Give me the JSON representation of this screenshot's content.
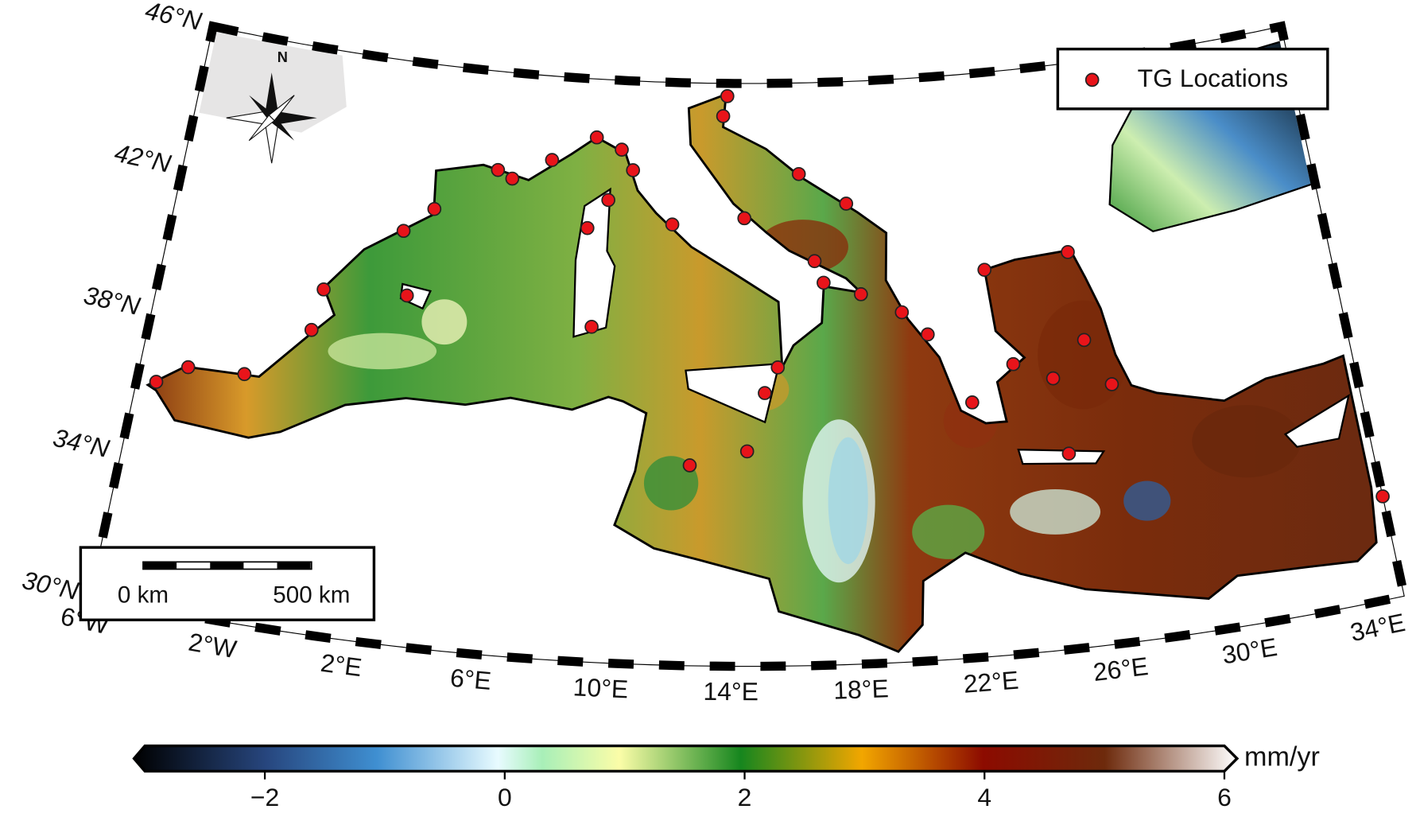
{
  "map": {
    "xlim": [
      -6,
      35
    ],
    "ylim": [
      30,
      46
    ],
    "lat_ticks": [
      {
        "value": 30,
        "label": "30°N"
      },
      {
        "value": 34,
        "label": "34°N"
      },
      {
        "value": 38,
        "label": "38°N"
      },
      {
        "value": 42,
        "label": "42°N"
      },
      {
        "value": 46,
        "label": "46°N"
      }
    ],
    "lon_ticks": [
      {
        "value": -6,
        "label": "6°W"
      },
      {
        "value": -2,
        "label": "2°W"
      },
      {
        "value": 2,
        "label": "2°E"
      },
      {
        "value": 6,
        "label": "6°E"
      },
      {
        "value": 10,
        "label": "10°E"
      },
      {
        "value": 14,
        "label": "14°E"
      },
      {
        "value": 18,
        "label": "18°E"
      },
      {
        "value": 22,
        "label": "22°E"
      },
      {
        "value": 26,
        "label": "26°E"
      },
      {
        "value": 30,
        "label": "30°E"
      },
      {
        "value": 34,
        "label": "34°E"
      }
    ],
    "compass_label": "N",
    "legend": {
      "label": "TG Locations",
      "color": "#e8141a"
    },
    "tide_gauges": {
      "lon": [
        -5.35,
        -4.4,
        -2.5,
        -0.5,
        -0.3,
        2.6,
        2.2,
        3.2,
        5.35,
        5.9,
        7.3,
        8.9,
        9.85,
        10.3,
        11.8,
        8.75,
        9.1,
        9.45,
        13.75,
        13.6,
        16.4,
        18.1,
        16.9,
        14.4,
        17.2,
        18.5,
        15.1,
        15.55,
        12.6,
        14.5,
        22.9,
        25.9,
        19.9,
        20.75,
        22.1,
        23.6,
        24.9,
        26.1,
        26.85,
        25.15,
        35.0
      ],
      "lat": [
        36.13,
        36.7,
        36.8,
        38.3,
        39.45,
        39.6,
        41.35,
        42.05,
        43.3,
        43.1,
        43.7,
        44.4,
        44.1,
        43.55,
        42.1,
        41.9,
        39.2,
        42.7,
        45.65,
        45.1,
        43.5,
        42.65,
        41.1,
        42.3,
        40.5,
        40.15,
        37.5,
        38.2,
        35.5,
        35.9,
        40.6,
        40.85,
        39.6,
        38.95,
        37.0,
        37.95,
        37.45,
        38.4,
        37.1,
        35.35,
        32.8
      ]
    },
    "scale_bar": {
      "labels": [
        "0 km",
        "500 km"
      ]
    },
    "colorbar": {
      "range": [
        -3,
        6
      ],
      "ticks": [
        {
          "value": -2,
          "label": "−2"
        },
        0,
        2,
        4,
        6
      ],
      "unit": "mm/yr"
    }
  }
}
